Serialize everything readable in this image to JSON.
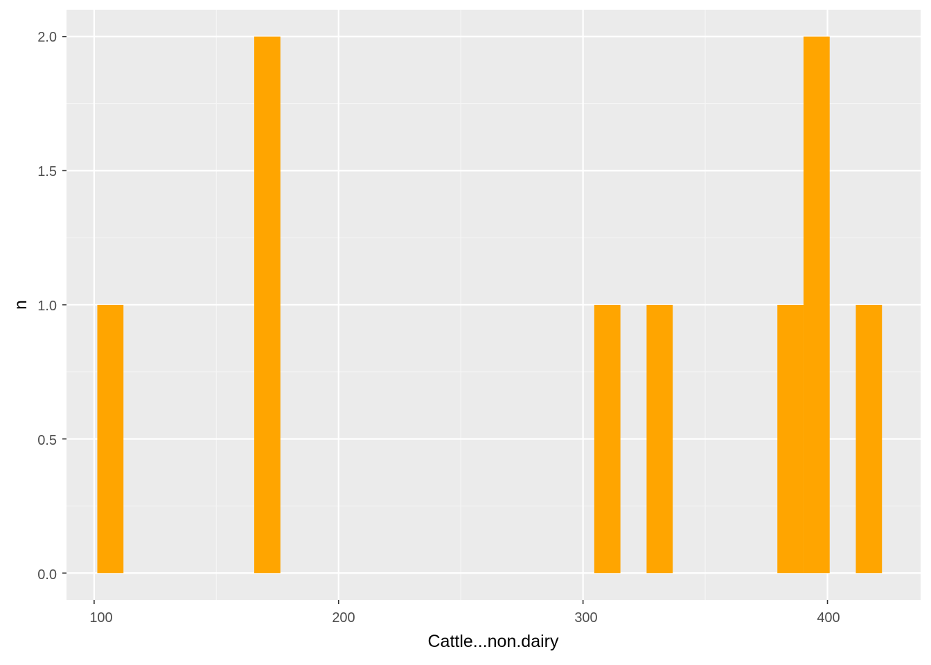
{
  "chart_data": {
    "type": "histogram",
    "title": "",
    "xlabel": "Cattle...non.dairy",
    "ylabel": "n",
    "xlim": [
      88.7,
      438.1
    ],
    "ylim": [
      -0.1,
      2.1
    ],
    "x_ticks": [
      100,
      200,
      300,
      400
    ],
    "x_minor_ticks": [
      150,
      250,
      350
    ],
    "y_ticks": [
      0.0,
      0.5,
      1.0,
      1.5,
      2.0
    ],
    "y_minor_ticks": [
      0.25,
      0.75,
      1.25,
      1.75
    ],
    "x_tick_labels": [
      "100",
      "200",
      "300",
      "400"
    ],
    "y_tick_labels": [
      "0.0",
      "0.5",
      "1.0",
      "1.5",
      "2.0"
    ],
    "grid": true,
    "bin_width": 10.7,
    "bins": [
      {
        "start": 101.3,
        "end": 112.0,
        "count": 1
      },
      {
        "start": 165.5,
        "end": 176.2,
        "count": 2
      },
      {
        "start": 304.6,
        "end": 315.3,
        "count": 1
      },
      {
        "start": 326.0,
        "end": 336.7,
        "count": 1
      },
      {
        "start": 379.5,
        "end": 390.2,
        "count": 1
      },
      {
        "start": 390.2,
        "end": 400.9,
        "count": 2
      },
      {
        "start": 411.6,
        "end": 422.3,
        "count": 1
      }
    ],
    "colors": {
      "bar": "#FFA500",
      "panel": "#EBEBEB",
      "grid_major": "#FFFFFF",
      "grid_minor": "#F5F5F5",
      "tick": "#333333"
    }
  }
}
